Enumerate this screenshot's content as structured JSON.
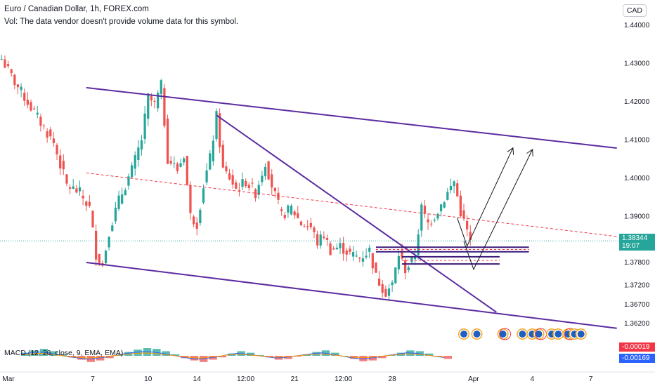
{
  "header": {
    "title": "Euro / Canadian Dollar, 1h, FOREX.com",
    "subtitle": "Vol: The data vendor doesn't provide volume data for this symbol."
  },
  "currency_button": "CAD",
  "indicator_label": "MACD (12, 26, close, 9, EMA, EMA)",
  "price_tag": {
    "value": "1.38344",
    "countdown": "19:07",
    "color": "#26a69a"
  },
  "macd_tags": [
    {
      "value": "-0.00019",
      "color": "#f23645"
    },
    {
      "value": "-0.00169",
      "color": "#2962ff"
    }
  ],
  "chart_data": {
    "type": "candlestick",
    "y_axis": {
      "ticks": [
        1.44,
        1.43,
        1.42,
        1.41,
        1.4,
        1.39,
        1.378,
        1.372,
        1.367,
        1.362
      ],
      "tick_labels": [
        "1.44000",
        "1.43000",
        "1.42000",
        "1.41000",
        "1.40000",
        "1.39000",
        "1.37800",
        "1.37200",
        "1.36700",
        "1.36200"
      ]
    },
    "x_axis": {
      "tick_labels": [
        "Mar",
        "7",
        "10",
        "14",
        "12:00",
        "21",
        "12:00",
        "28",
        "Apr",
        "4",
        "7"
      ],
      "tick_index": [
        0,
        28,
        45,
        60,
        75,
        90,
        105,
        120,
        145,
        163,
        181
      ]
    },
    "total_slots": 190,
    "current_price": 1.38344,
    "price_path": [
      [
        0,
        1.431
      ],
      [
        4,
        1.425
      ],
      [
        10,
        1.417
      ],
      [
        16,
        1.409
      ],
      [
        20,
        1.398
      ],
      [
        24,
        1.396
      ],
      [
        27,
        1.392
      ],
      [
        29,
        1.38
      ],
      [
        31,
        1.377
      ],
      [
        33,
        1.386
      ],
      [
        36,
        1.394
      ],
      [
        40,
        1.402
      ],
      [
        43,
        1.41
      ],
      [
        45,
        1.421
      ],
      [
        47,
        1.419
      ],
      [
        49,
        1.424
      ],
      [
        51,
        1.405
      ],
      [
        54,
        1.402
      ],
      [
        56,
        1.406
      ],
      [
        58,
        1.39
      ],
      [
        60,
        1.388
      ],
      [
        62,
        1.398
      ],
      [
        64,
        1.405
      ],
      [
        66,
        1.416
      ],
      [
        68,
        1.402
      ],
      [
        70,
        1.4
      ],
      [
        72,
        1.397
      ],
      [
        75,
        1.399
      ],
      [
        78,
        1.396
      ],
      [
        81,
        1.404
      ],
      [
        83,
        1.398
      ],
      [
        86,
        1.39
      ],
      [
        89,
        1.392
      ],
      [
        92,
        1.388
      ],
      [
        95,
        1.387
      ],
      [
        97,
        1.383
      ],
      [
        99,
        1.385
      ],
      [
        101,
        1.381
      ],
      [
        104,
        1.382
      ],
      [
        107,
        1.38
      ],
      [
        110,
        1.379
      ],
      [
        113,
        1.381
      ],
      [
        115,
        1.374
      ],
      [
        118,
        1.37
      ],
      [
        120,
        1.372
      ],
      [
        122,
        1.38
      ],
      [
        124,
        1.376
      ],
      [
        126,
        1.378
      ],
      [
        127,
        1.38
      ],
      [
        129,
        1.392
      ],
      [
        131,
        1.388
      ],
      [
        133,
        1.39
      ],
      [
        135,
        1.393
      ],
      [
        137,
        1.396
      ],
      [
        139,
        1.399
      ],
      [
        141,
        1.391
      ],
      [
        143,
        1.386
      ],
      [
        144,
        1.383
      ]
    ],
    "trendlines": [
      {
        "name": "upper-channel",
        "x": [
          26,
          189
        ],
        "y": [
          1.4235,
          1.4077
        ]
      },
      {
        "name": "lower-channel",
        "x": [
          26,
          189
        ],
        "y": [
          1.3778,
          1.3606
        ]
      },
      {
        "name": "descending-trendline",
        "x": [
          66,
          152
        ],
        "y": [
          1.4163,
          1.3648
        ]
      },
      {
        "name": "dashed-red-line",
        "x": [
          26,
          189
        ],
        "y": [
          1.4012,
          1.3846
        ]
      }
    ],
    "zones": [
      {
        "x": [
          115,
          162
        ],
        "y": [
          1.3818,
          1.3806
        ]
      },
      {
        "x": [
          123,
          153
        ],
        "y": [
          1.3793,
          1.3774
        ]
      }
    ],
    "projection_arrows": [
      {
        "x": [
          143,
          157
        ],
        "y": [
          1.3821,
          1.4076
        ]
      },
      {
        "x": [
          145,
          163
        ],
        "y": [
          1.376,
          1.4072
        ]
      }
    ],
    "event_markers_x": [
      142,
      146,
      154,
      160,
      163,
      165,
      169,
      171,
      174,
      176,
      178
    ],
    "macd": {
      "histogram": [
        0.4,
        0.7,
        0.9,
        0.6,
        0.2,
        -0.2,
        -0.5,
        -0.8,
        -0.6,
        -0.3,
        0.1,
        0.5,
        0.8,
        1.0,
        0.9,
        0.6,
        0.2,
        -0.3,
        -0.6,
        -0.8,
        -0.5,
        -0.2,
        0.3,
        0.6,
        0.4,
        0.1,
        -0.2,
        -0.5,
        -0.4,
        -0.1,
        0.2,
        0.5,
        0.7,
        0.4,
        0.0,
        -0.4,
        -0.7,
        -0.6,
        -0.3,
        0.1,
        0.4,
        0.7,
        0.6,
        0.3,
        -0.1,
        -0.4
      ]
    }
  }
}
